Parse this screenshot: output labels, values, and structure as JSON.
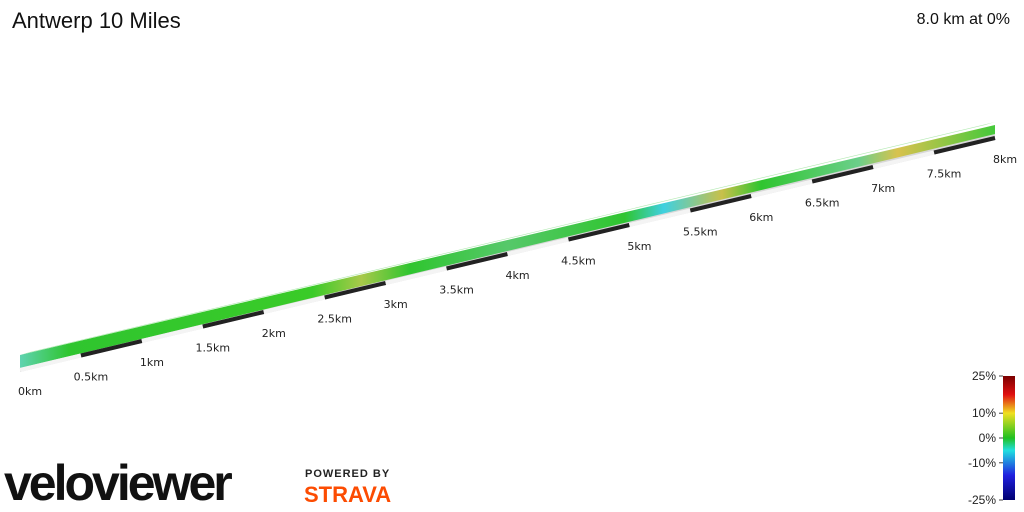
{
  "header": {
    "title": "Antwerp 10 Miles",
    "summary": "8.0 km at 0%"
  },
  "distance_markers": [
    "0km",
    "0.5km",
    "1km",
    "1.5km",
    "2km",
    "2.5km",
    "3km",
    "3.5km",
    "4km",
    "4.5km",
    "5km",
    "5.5km",
    "6km",
    "6.5km",
    "7km",
    "7.5km",
    "8km"
  ],
  "gradient_scale": {
    "lim": [
      -25,
      25
    ],
    "ticks": [
      {
        "value": 25,
        "label": "25%"
      },
      {
        "value": 10,
        "label": "10%"
      },
      {
        "value": 0,
        "label": "0%"
      },
      {
        "value": -10,
        "label": "-10%"
      },
      {
        "value": -25,
        "label": "-25%"
      }
    ]
  },
  "branding": {
    "logo": "veloviewer",
    "powered_by": "POWERED BY",
    "partner": "STRAVA"
  }
}
